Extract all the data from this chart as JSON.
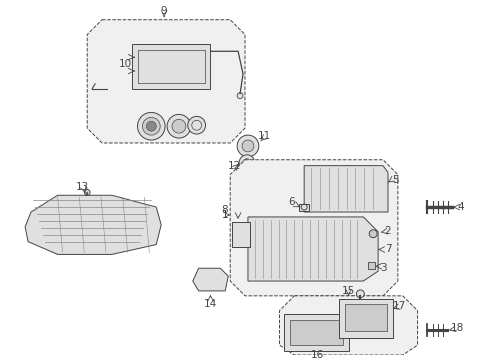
{
  "bg_color": "#ffffff",
  "lc": "#444444",
  "mg": "#888888",
  "fg": "#e0e0e0",
  "fl": "#ebebeb",
  "dd": "#cccccc"
}
